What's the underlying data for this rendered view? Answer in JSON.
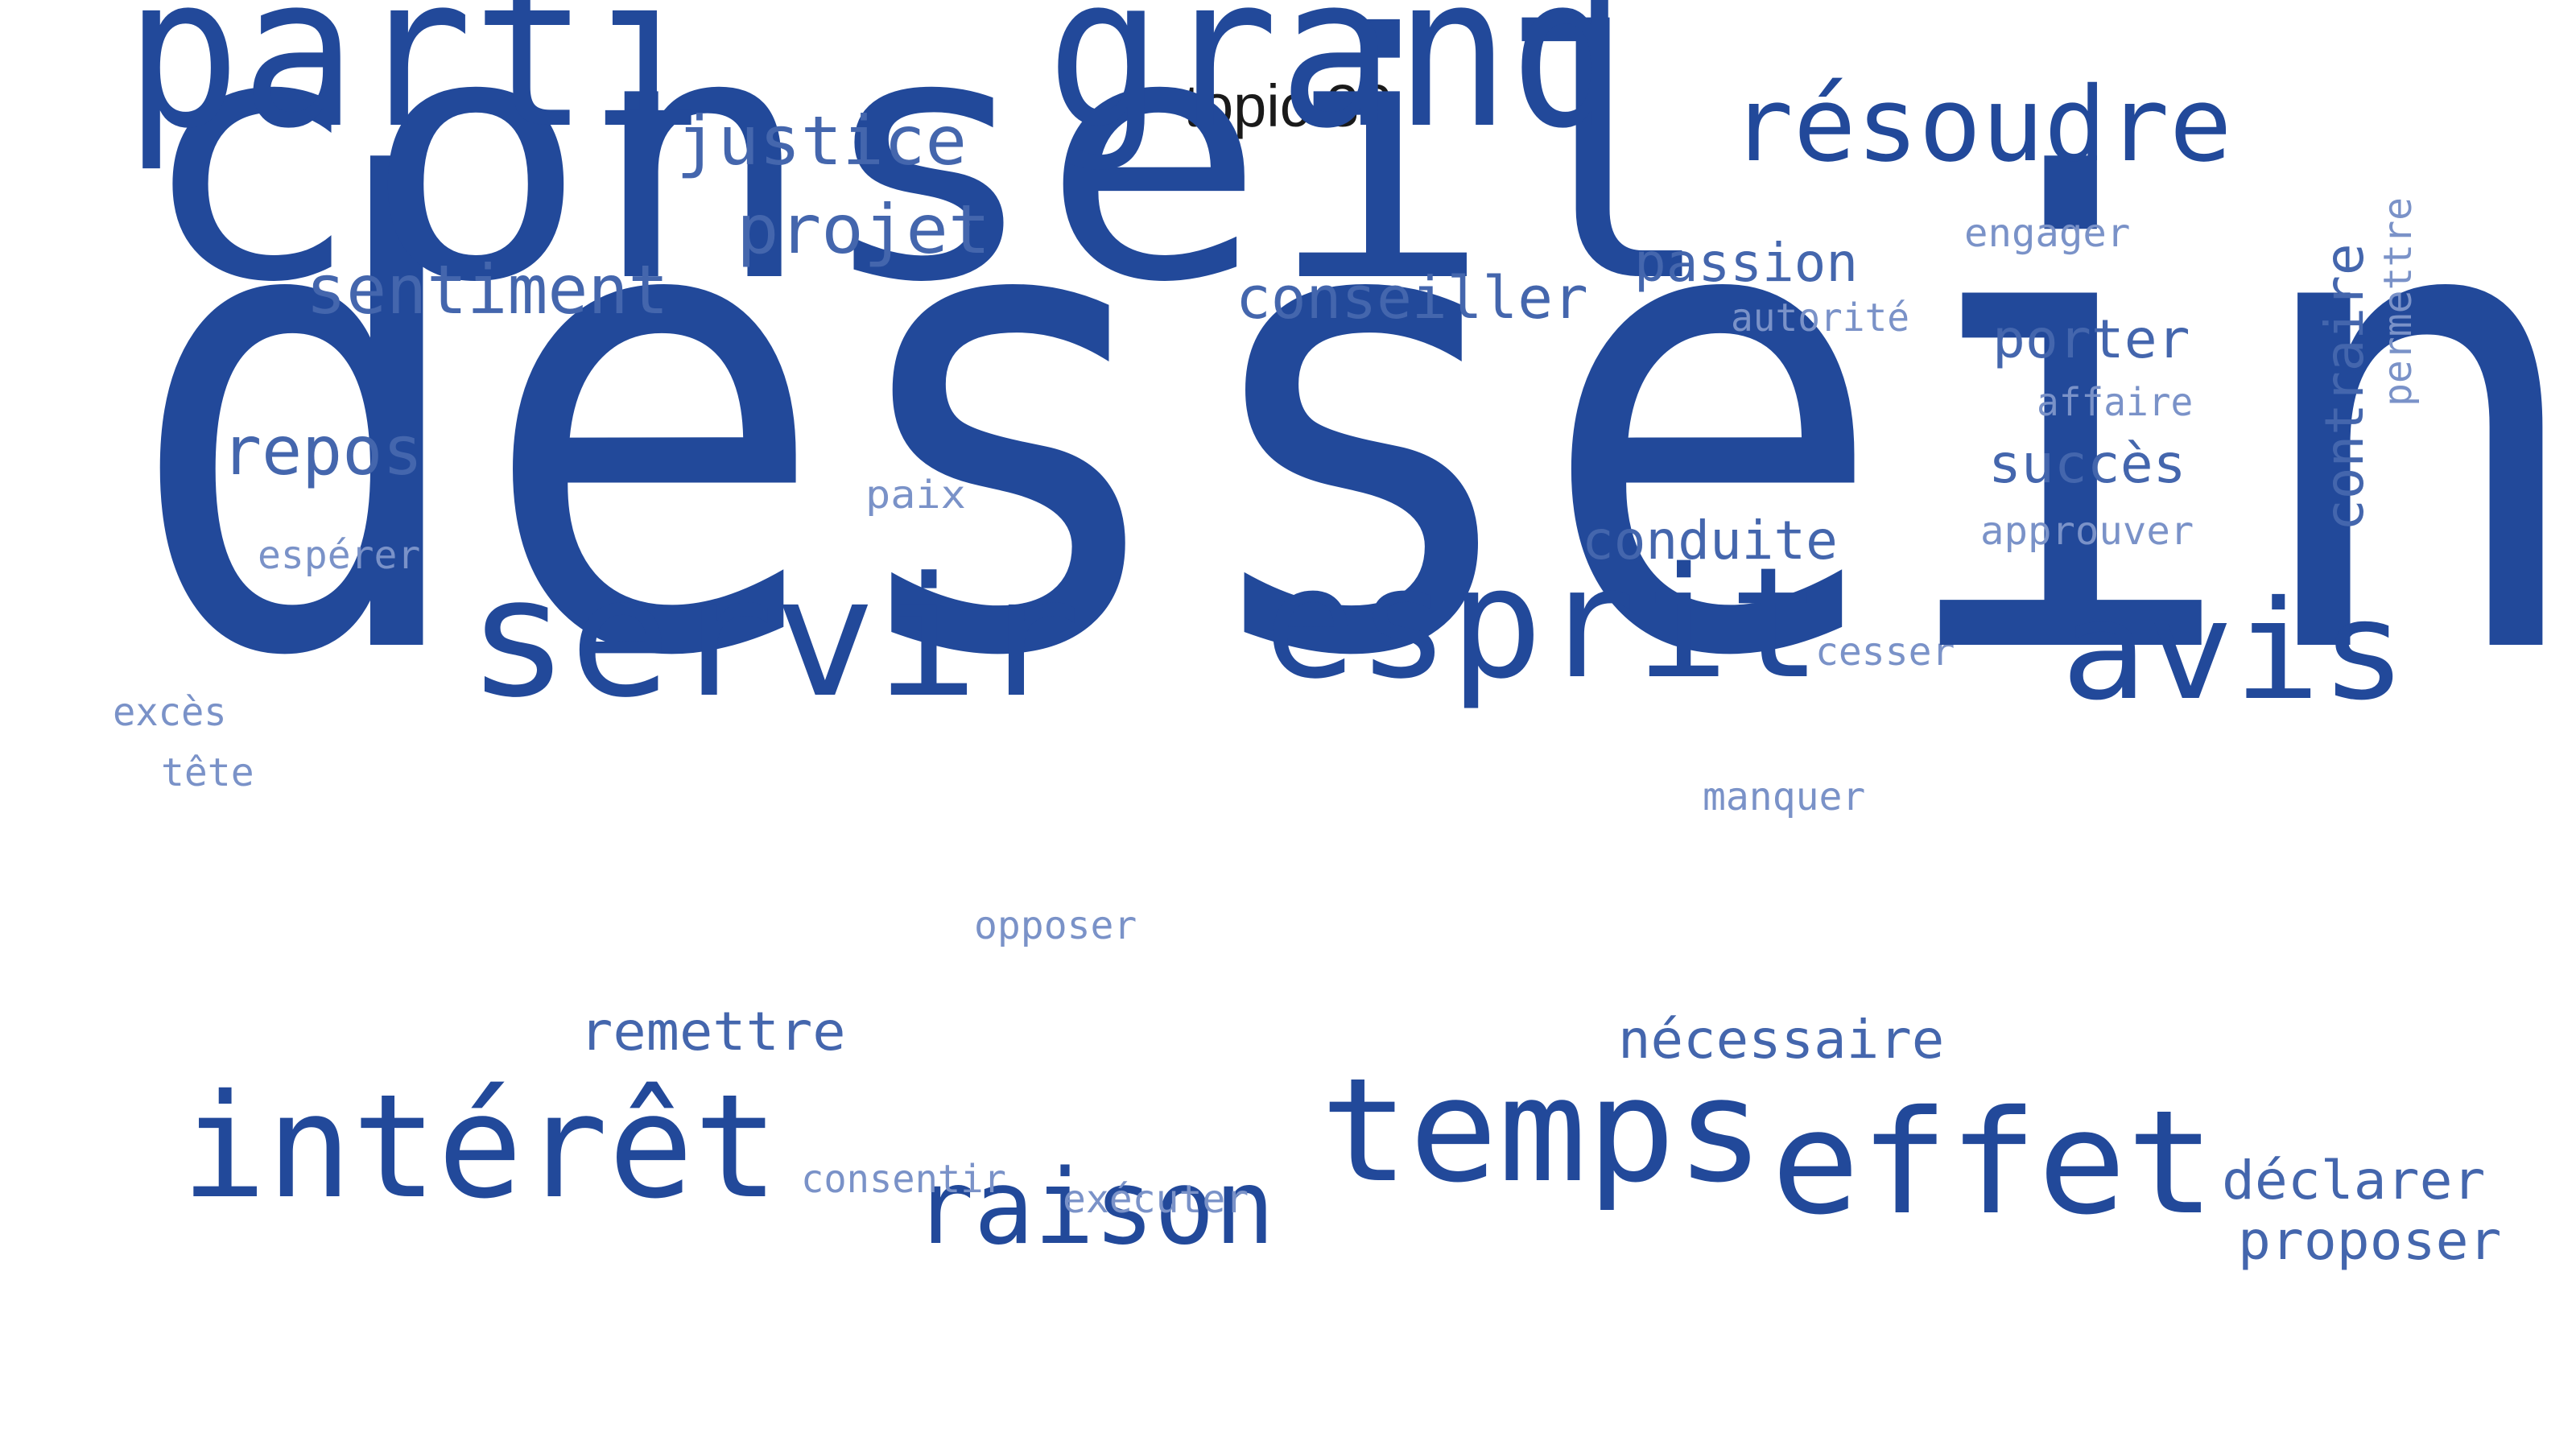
{
  "title": "topic 36",
  "colors": {
    "dark": "#22499a",
    "mid": "#4466ad",
    "light": "#7a92c8"
  },
  "words": [
    {
      "id": "dessein",
      "text": "dessein"
    },
    {
      "id": "conseil",
      "text": "conseil"
    },
    {
      "id": "grand",
      "text": "grand"
    },
    {
      "id": "parti",
      "text": "parti"
    },
    {
      "id": "servir",
      "text": "servir"
    },
    {
      "id": "esprit",
      "text": "esprit"
    },
    {
      "id": "avis",
      "text": "avis"
    },
    {
      "id": "temps",
      "text": "temps"
    },
    {
      "id": "effet",
      "text": "effet"
    },
    {
      "id": "interet",
      "text": "intérêt"
    },
    {
      "id": "resoudre",
      "text": "résoudre"
    },
    {
      "id": "raison",
      "text": "raison"
    },
    {
      "id": "justice",
      "text": "justice"
    },
    {
      "id": "projet",
      "text": "projet"
    },
    {
      "id": "sentiment",
      "text": "sentiment"
    },
    {
      "id": "repos",
      "text": "repos"
    },
    {
      "id": "conseiller",
      "text": "conseiller"
    },
    {
      "id": "passion",
      "text": "passion"
    },
    {
      "id": "porter",
      "text": "porter"
    },
    {
      "id": "succes",
      "text": "succès"
    },
    {
      "id": "conduite",
      "text": "conduite"
    },
    {
      "id": "contraire",
      "text": "contraire"
    },
    {
      "id": "necessaire",
      "text": "nécessaire"
    },
    {
      "id": "remettre",
      "text": "remettre"
    },
    {
      "id": "declarer",
      "text": "déclarer"
    },
    {
      "id": "proposer",
      "text": "proposer"
    },
    {
      "id": "engager",
      "text": "engager"
    },
    {
      "id": "autorite",
      "text": "autorité"
    },
    {
      "id": "affaire",
      "text": "affaire"
    },
    {
      "id": "approuver",
      "text": "approuver"
    },
    {
      "id": "permettre",
      "text": "permettre"
    },
    {
      "id": "paix",
      "text": "paix"
    },
    {
      "id": "esperer",
      "text": "espérer"
    },
    {
      "id": "exces",
      "text": "excès"
    },
    {
      "id": "tete",
      "text": "tête"
    },
    {
      "id": "cesser",
      "text": "cesser"
    },
    {
      "id": "manquer",
      "text": "manquer"
    },
    {
      "id": "opposer",
      "text": "opposer"
    },
    {
      "id": "consentir",
      "text": "consentir"
    },
    {
      "id": "executer",
      "text": "exécuter"
    }
  ]
}
